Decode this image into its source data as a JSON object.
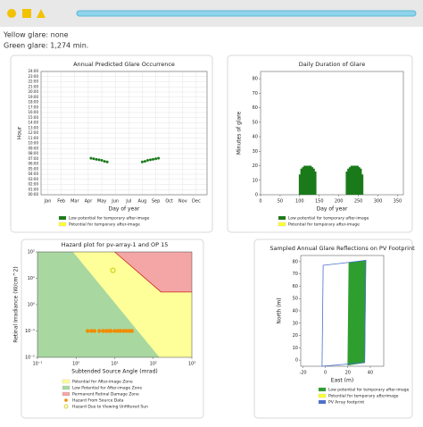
{
  "header": {
    "yellow_glare": "Yellow glare: none",
    "green_glare": "Green glare: 1,274 min."
  },
  "chart_data": [
    {
      "type": "scatter",
      "title": "Annual Predicted Glare Occurrence",
      "xlabel": "Day of year",
      "ylabel": "Hour",
      "xlim": [
        -0.5,
        11.8
      ],
      "xticks": [
        {
          "value": 0,
          "label": "Jan"
        },
        {
          "value": 1,
          "label": "Feb"
        },
        {
          "value": 2,
          "label": "Mar"
        },
        {
          "value": 3,
          "label": "Apr"
        },
        {
          "value": 4,
          "label": "May"
        },
        {
          "value": 5,
          "label": "Jun"
        },
        {
          "value": 6,
          "label": "Jul"
        },
        {
          "value": 7,
          "label": "Aug"
        },
        {
          "value": 8,
          "label": "Sep"
        },
        {
          "value": 9,
          "label": "Oct"
        },
        {
          "value": 10,
          "label": "Nov"
        },
        {
          "value": 11,
          "label": "Dec"
        }
      ],
      "ylim": [
        0,
        24
      ],
      "yticks": [
        {
          "value": 0,
          "label": "00:00"
        },
        {
          "value": 1,
          "label": "01:00"
        },
        {
          "value": 2,
          "label": "02:00"
        },
        {
          "value": 3,
          "label": "03:00"
        },
        {
          "value": 4,
          "label": "04:00"
        },
        {
          "value": 5,
          "label": "05:00"
        },
        {
          "value": 6,
          "label": "06:00"
        },
        {
          "value": 7,
          "label": "07:00"
        },
        {
          "value": 8,
          "label": "08:00"
        },
        {
          "value": 9,
          "label": "09:00"
        },
        {
          "value": 10,
          "label": "10:00"
        },
        {
          "value": 11,
          "label": "11:00"
        },
        {
          "value": 12,
          "label": "12:00"
        },
        {
          "value": 13,
          "label": "13:00"
        },
        {
          "value": 14,
          "label": "14:00"
        },
        {
          "value": 15,
          "label": "15:00"
        },
        {
          "value": 16,
          "label": "16:00"
        },
        {
          "value": 17,
          "label": "17:00"
        },
        {
          "value": 18,
          "label": "18:00"
        },
        {
          "value": 19,
          "label": "19:00"
        },
        {
          "value": 20,
          "label": "20:00"
        },
        {
          "value": 21,
          "label": "21:00"
        },
        {
          "value": 22,
          "label": "22:00"
        },
        {
          "value": 23,
          "label": "23:00"
        },
        {
          "value": 24,
          "label": "24:00"
        }
      ],
      "grid": true,
      "series": [
        {
          "name": "Low potential for temporary after-image",
          "color": "#1a7a1a",
          "x": [
            3.2,
            3.4,
            3.6,
            3.8,
            4.0,
            4.2,
            4.4,
            7.0,
            7.2,
            7.4,
            7.6,
            7.8,
            8.0,
            8.2
          ],
          "values": [
            7.1,
            7.0,
            6.9,
            6.8,
            6.7,
            6.5,
            6.4,
            6.4,
            6.5,
            6.7,
            6.8,
            6.9,
            7.0,
            7.1
          ]
        },
        {
          "name": "Potential for temporary after-image",
          "color": "#ffff33",
          "x": [],
          "values": []
        }
      ]
    },
    {
      "type": "bar",
      "title": "Daily Duration of Glare",
      "xlabel": "Day of year",
      "ylabel": "Minutes of glare",
      "xlim": [
        0,
        365
      ],
      "xticks": [
        0,
        50,
        100,
        150,
        200,
        250,
        300,
        350
      ],
      "ylim": [
        0,
        85
      ],
      "yticks": [
        0,
        10,
        20,
        30,
        40,
        50,
        60,
        70,
        80
      ],
      "series": [
        {
          "name": "Low potential for temporary after-image",
          "color": "#1a7a1a",
          "x": [
            100,
            104,
            108,
            112,
            116,
            120,
            124,
            128,
            132,
            136,
            140,
            220,
            224,
            228,
            232,
            236,
            240,
            244,
            248,
            252,
            256,
            260
          ],
          "values": [
            14,
            18,
            19,
            20,
            20,
            20,
            20,
            20,
            19,
            18,
            16,
            16,
            18,
            19,
            20,
            20,
            20,
            20,
            20,
            19,
            18,
            14
          ]
        },
        {
          "name": "Potential for temporary after-image",
          "color": "#ffff33",
          "x": [],
          "values": []
        }
      ]
    },
    {
      "type": "hazard",
      "title": "Hazard plot for pv-array-1 and OP 15",
      "xlabel": "Subtended Source Angle (mrad)",
      "ylabel": "Retinal Irradiance (W/cm^2)",
      "xscale": "log",
      "yscale": "log",
      "xlim": [
        0.1,
        1000
      ],
      "xticks": [
        {
          "value": 0.1,
          "label": "10⁻¹"
        },
        {
          "value": 1,
          "label": "10⁰"
        },
        {
          "value": 10,
          "label": "10¹"
        },
        {
          "value": 100,
          "label": "10²"
        },
        {
          "value": 1000,
          "label": "10³"
        }
      ],
      "ylim": [
        0.01,
        100
      ],
      "yticks": [
        {
          "value": 0.01,
          "label": "10⁻²"
        },
        {
          "value": 0.1,
          "label": "10⁻¹"
        },
        {
          "value": 1,
          "label": "10⁰"
        },
        {
          "value": 10,
          "label": "10¹"
        },
        {
          "value": 100,
          "label": "10²"
        }
      ],
      "zones": [
        {
          "name": "Potential for After-image Zone",
          "color": "#ffff99"
        },
        {
          "name": "Low Potential for After-image Zone",
          "color": "#a8d8a0"
        },
        {
          "name": "Permanent Retinal Damage Zone",
          "color": "#f4a6a6"
        }
      ],
      "series": [
        {
          "name": "Hazard From Source Data",
          "color": "#f08c00",
          "marker": "dot",
          "x": [
            2,
            2.5,
            3,
            4,
            5,
            6,
            7,
            8,
            10,
            12,
            14,
            17,
            20,
            24,
            28
          ],
          "values": [
            0.1,
            0.1,
            0.1,
            0.1,
            0.1,
            0.1,
            0.1,
            0.1,
            0.1,
            0.1,
            0.1,
            0.1,
            0.1,
            0.1,
            0.1
          ]
        },
        {
          "name": "Hazard Due to Viewing Unfiltered Sun",
          "color": "#c8c800",
          "marker": "ring",
          "x": [
            9
          ],
          "values": [
            20
          ]
        }
      ]
    },
    {
      "type": "footprint",
      "title": "Sampled Annual Glare Reflections on PV Footprint",
      "xlabel": "East (m)",
      "ylabel": "North (m)",
      "xlim": [
        -22,
        52
      ],
      "xticks": [
        -20,
        0,
        20,
        40
      ],
      "ylim": [
        -5,
        85
      ],
      "yticks": [
        0,
        10,
        20,
        30,
        40,
        50,
        60,
        70,
        80
      ],
      "series": [
        {
          "name": "Low potential for temporary after-image",
          "color": "#2e9e2e",
          "style": "fill",
          "x": [
            21,
            36,
            35,
            20
          ],
          "values": [
            79,
            81,
            -2,
            -4
          ]
        },
        {
          "name": "Potential for temporary afterimage",
          "color": "#ffff33",
          "style": "fill",
          "x": [],
          "values": []
        },
        {
          "name": "PV Array footprint",
          "color": "#4a6fd0",
          "style": "outline",
          "x": [
            -2,
            36,
            35,
            -3
          ],
          "values": [
            77,
            81,
            -2,
            -5
          ]
        }
      ]
    }
  ]
}
